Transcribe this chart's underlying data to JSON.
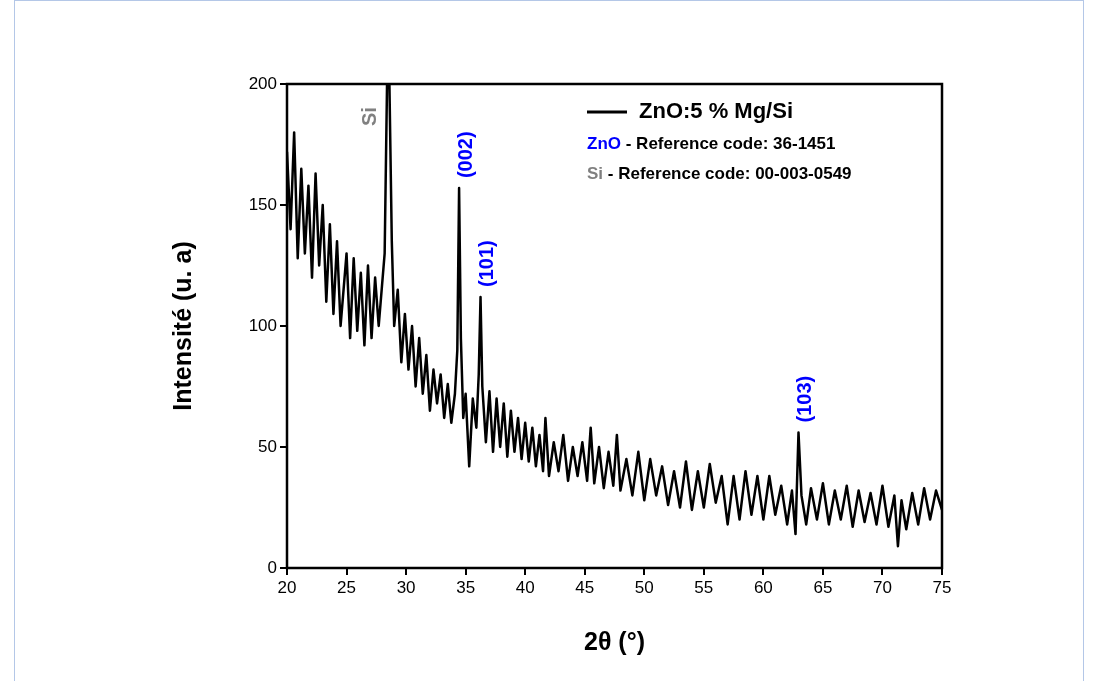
{
  "chart_data": {
    "type": "line",
    "xlabel": "2θ (°)",
    "ylabel": "Intensité (u. a)",
    "x": [
      20.0,
      20.3,
      20.6,
      20.9,
      21.2,
      21.5,
      21.8,
      22.1,
      22.4,
      22.7,
      23.0,
      23.3,
      23.6,
      23.9,
      24.2,
      24.5,
      25.0,
      25.3,
      25.6,
      25.9,
      26.2,
      26.5,
      26.8,
      27.1,
      27.4,
      27.7,
      28.0,
      28.2,
      28.4,
      28.6,
      28.8,
      29.0,
      29.3,
      29.6,
      29.9,
      30.2,
      30.5,
      30.8,
      31.1,
      31.4,
      31.7,
      32.0,
      32.3,
      32.6,
      32.9,
      33.2,
      33.5,
      33.8,
      34.1,
      34.3,
      34.45,
      34.6,
      34.8,
      35.0,
      35.3,
      35.6,
      35.9,
      36.1,
      36.25,
      36.4,
      36.7,
      37.0,
      37.3,
      37.6,
      37.9,
      38.2,
      38.5,
      38.8,
      39.1,
      39.4,
      39.7,
      40.0,
      40.3,
      40.6,
      40.9,
      41.2,
      41.5,
      41.7,
      42.0,
      42.4,
      42.8,
      43.2,
      43.6,
      44.0,
      44.4,
      44.8,
      45.2,
      45.5,
      45.8,
      46.2,
      46.6,
      47.0,
      47.4,
      47.7,
      48.0,
      48.5,
      49.0,
      49.5,
      50.0,
      50.5,
      51.0,
      51.5,
      52.0,
      52.5,
      53.0,
      53.5,
      54.0,
      54.5,
      55.0,
      55.5,
      56.0,
      56.5,
      57.0,
      57.5,
      58.0,
      58.5,
      59.0,
      59.5,
      60.0,
      60.5,
      61.0,
      61.5,
      62.0,
      62.4,
      62.7,
      62.95,
      63.2,
      63.6,
      64.0,
      64.5,
      65.0,
      65.5,
      66.0,
      66.5,
      67.0,
      67.5,
      68.0,
      68.5,
      69.0,
      69.5,
      70.0,
      70.5,
      71.0,
      71.3,
      71.6,
      72.0,
      72.5,
      73.0,
      73.5,
      74.0,
      74.5,
      75.0
    ],
    "series": [
      {
        "name": "ZnO:5 % Mg/Si",
        "color": "#000000",
        "values": [
          172,
          140,
          180,
          128,
          165,
          130,
          158,
          120,
          163,
          125,
          150,
          110,
          142,
          105,
          135,
          100,
          130,
          95,
          128,
          98,
          122,
          92,
          125,
          95,
          120,
          100,
          118,
          130,
          200,
          200,
          135,
          100,
          115,
          85,
          105,
          82,
          100,
          75,
          95,
          72,
          88,
          65,
          82,
          68,
          80,
          62,
          76,
          60,
          72,
          90,
          157,
          95,
          62,
          72,
          42,
          70,
          58,
          80,
          112,
          75,
          52,
          73,
          48,
          70,
          50,
          68,
          46,
          65,
          48,
          62,
          45,
          60,
          44,
          58,
          42,
          55,
          40,
          62,
          38,
          52,
          40,
          55,
          36,
          50,
          38,
          52,
          36,
          58,
          35,
          50,
          33,
          48,
          34,
          55,
          32,
          45,
          30,
          48,
          28,
          45,
          30,
          42,
          26,
          40,
          25,
          44,
          24,
          40,
          25,
          43,
          27,
          38,
          18,
          38,
          20,
          40,
          22,
          38,
          20,
          38,
          22,
          34,
          18,
          32,
          14,
          56,
          30,
          18,
          33,
          20,
          35,
          18,
          32,
          20,
          34,
          17,
          32,
          19,
          31,
          18,
          34,
          17,
          30,
          9,
          28,
          16,
          31,
          18,
          33,
          20,
          32,
          24
        ]
      }
    ],
    "xlim": [
      20,
      75
    ],
    "xticks": [
      20,
      25,
      30,
      35,
      40,
      45,
      50,
      55,
      60,
      65,
      70,
      75
    ],
    "ylim": [
      0,
      200
    ],
    "yticks": [
      0,
      50,
      100,
      150,
      200
    ],
    "legend": "top right",
    "grid": false,
    "marker": "none",
    "line_style": "solid",
    "annotations": [
      {
        "text": "Si",
        "x": 28.5,
        "y": 200
      },
      {
        "text": "(002)",
        "x": 34.45,
        "y": 157
      },
      {
        "text": "(101)",
        "x": 36.25,
        "y": 112
      },
      {
        "text": "(103)",
        "x": 62.95,
        "y": 56
      },
      "ZnO - Reference code: 36-1451",
      "Si - Reference code: 00-003-0549"
    ]
  }
}
